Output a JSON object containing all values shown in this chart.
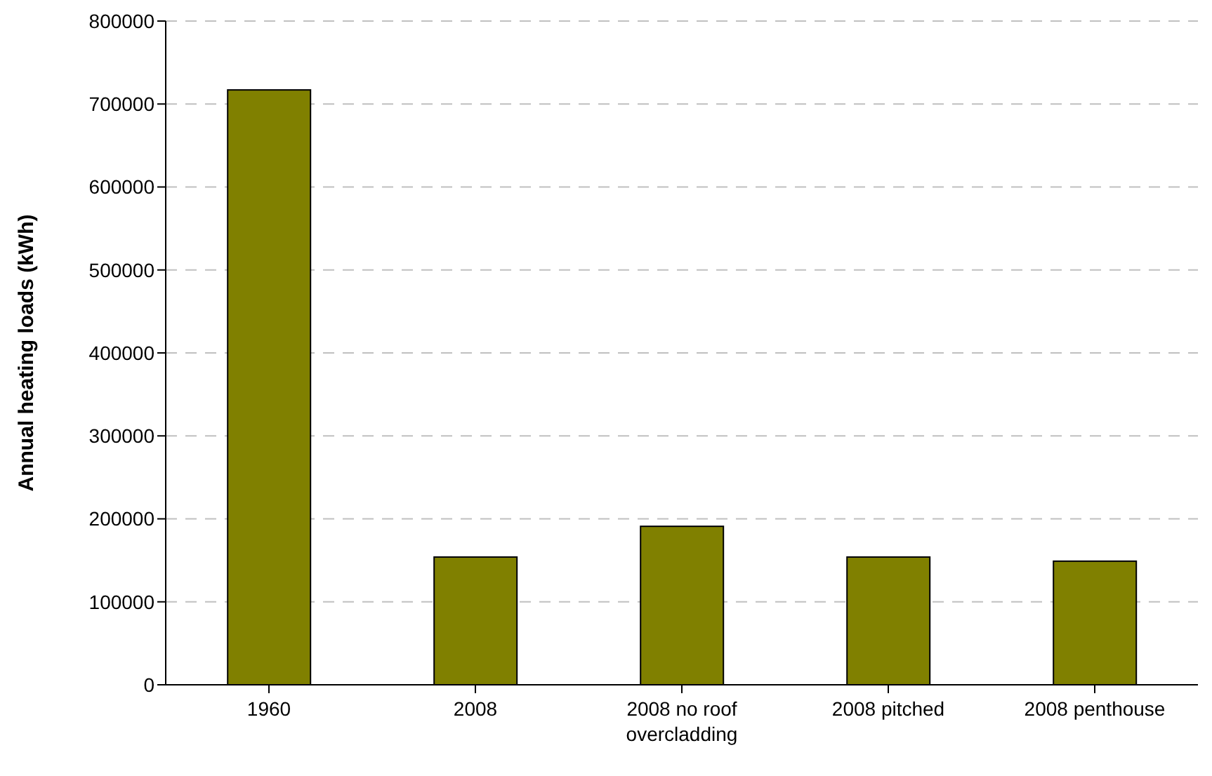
{
  "chart_data": {
    "type": "bar",
    "ylabel": "Annual heating loads (kWh)",
    "categories": [
      "1960",
      "2008",
      "2008 no roof overcladding",
      "2008 pitched",
      "2008 penthouse"
    ],
    "values": [
      717000,
      154000,
      191000,
      154000,
      149000
    ],
    "color": "#808000",
    "ylim": [
      0,
      800000
    ],
    "yticks": [
      0,
      100000,
      200000,
      300000,
      400000,
      500000,
      600000,
      700000,
      800000
    ],
    "grid": "y"
  }
}
